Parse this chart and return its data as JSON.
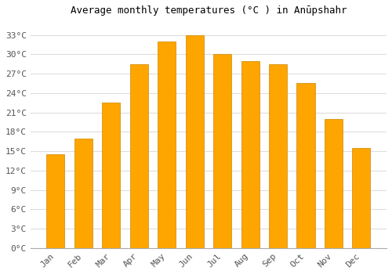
{
  "title": "Average monthly temperatures (°C ) in Anūpshahr",
  "months": [
    "Jan",
    "Feb",
    "Mar",
    "Apr",
    "May",
    "Jun",
    "Jul",
    "Aug",
    "Sep",
    "Oct",
    "Nov",
    "Dec"
  ],
  "values": [
    14.5,
    17.0,
    22.5,
    28.5,
    32.0,
    33.0,
    30.0,
    29.0,
    28.5,
    25.5,
    20.0,
    15.5
  ],
  "bar_color": "#FFA500",
  "bar_edge_color": "#CC8800",
  "ylim": [
    0,
    35
  ],
  "yticks": [
    0,
    3,
    6,
    9,
    12,
    15,
    18,
    21,
    24,
    27,
    30,
    33
  ],
  "ytick_labels": [
    "0°C",
    "3°C",
    "6°C",
    "9°C",
    "12°C",
    "15°C",
    "18°C",
    "21°C",
    "24°C",
    "27°C",
    "30°C",
    "33°C"
  ],
  "background_color": "#ffffff",
  "grid_color": "#dddddd",
  "title_fontsize": 9,
  "tick_fontsize": 8,
  "font_family": "monospace",
  "bar_width": 0.65
}
